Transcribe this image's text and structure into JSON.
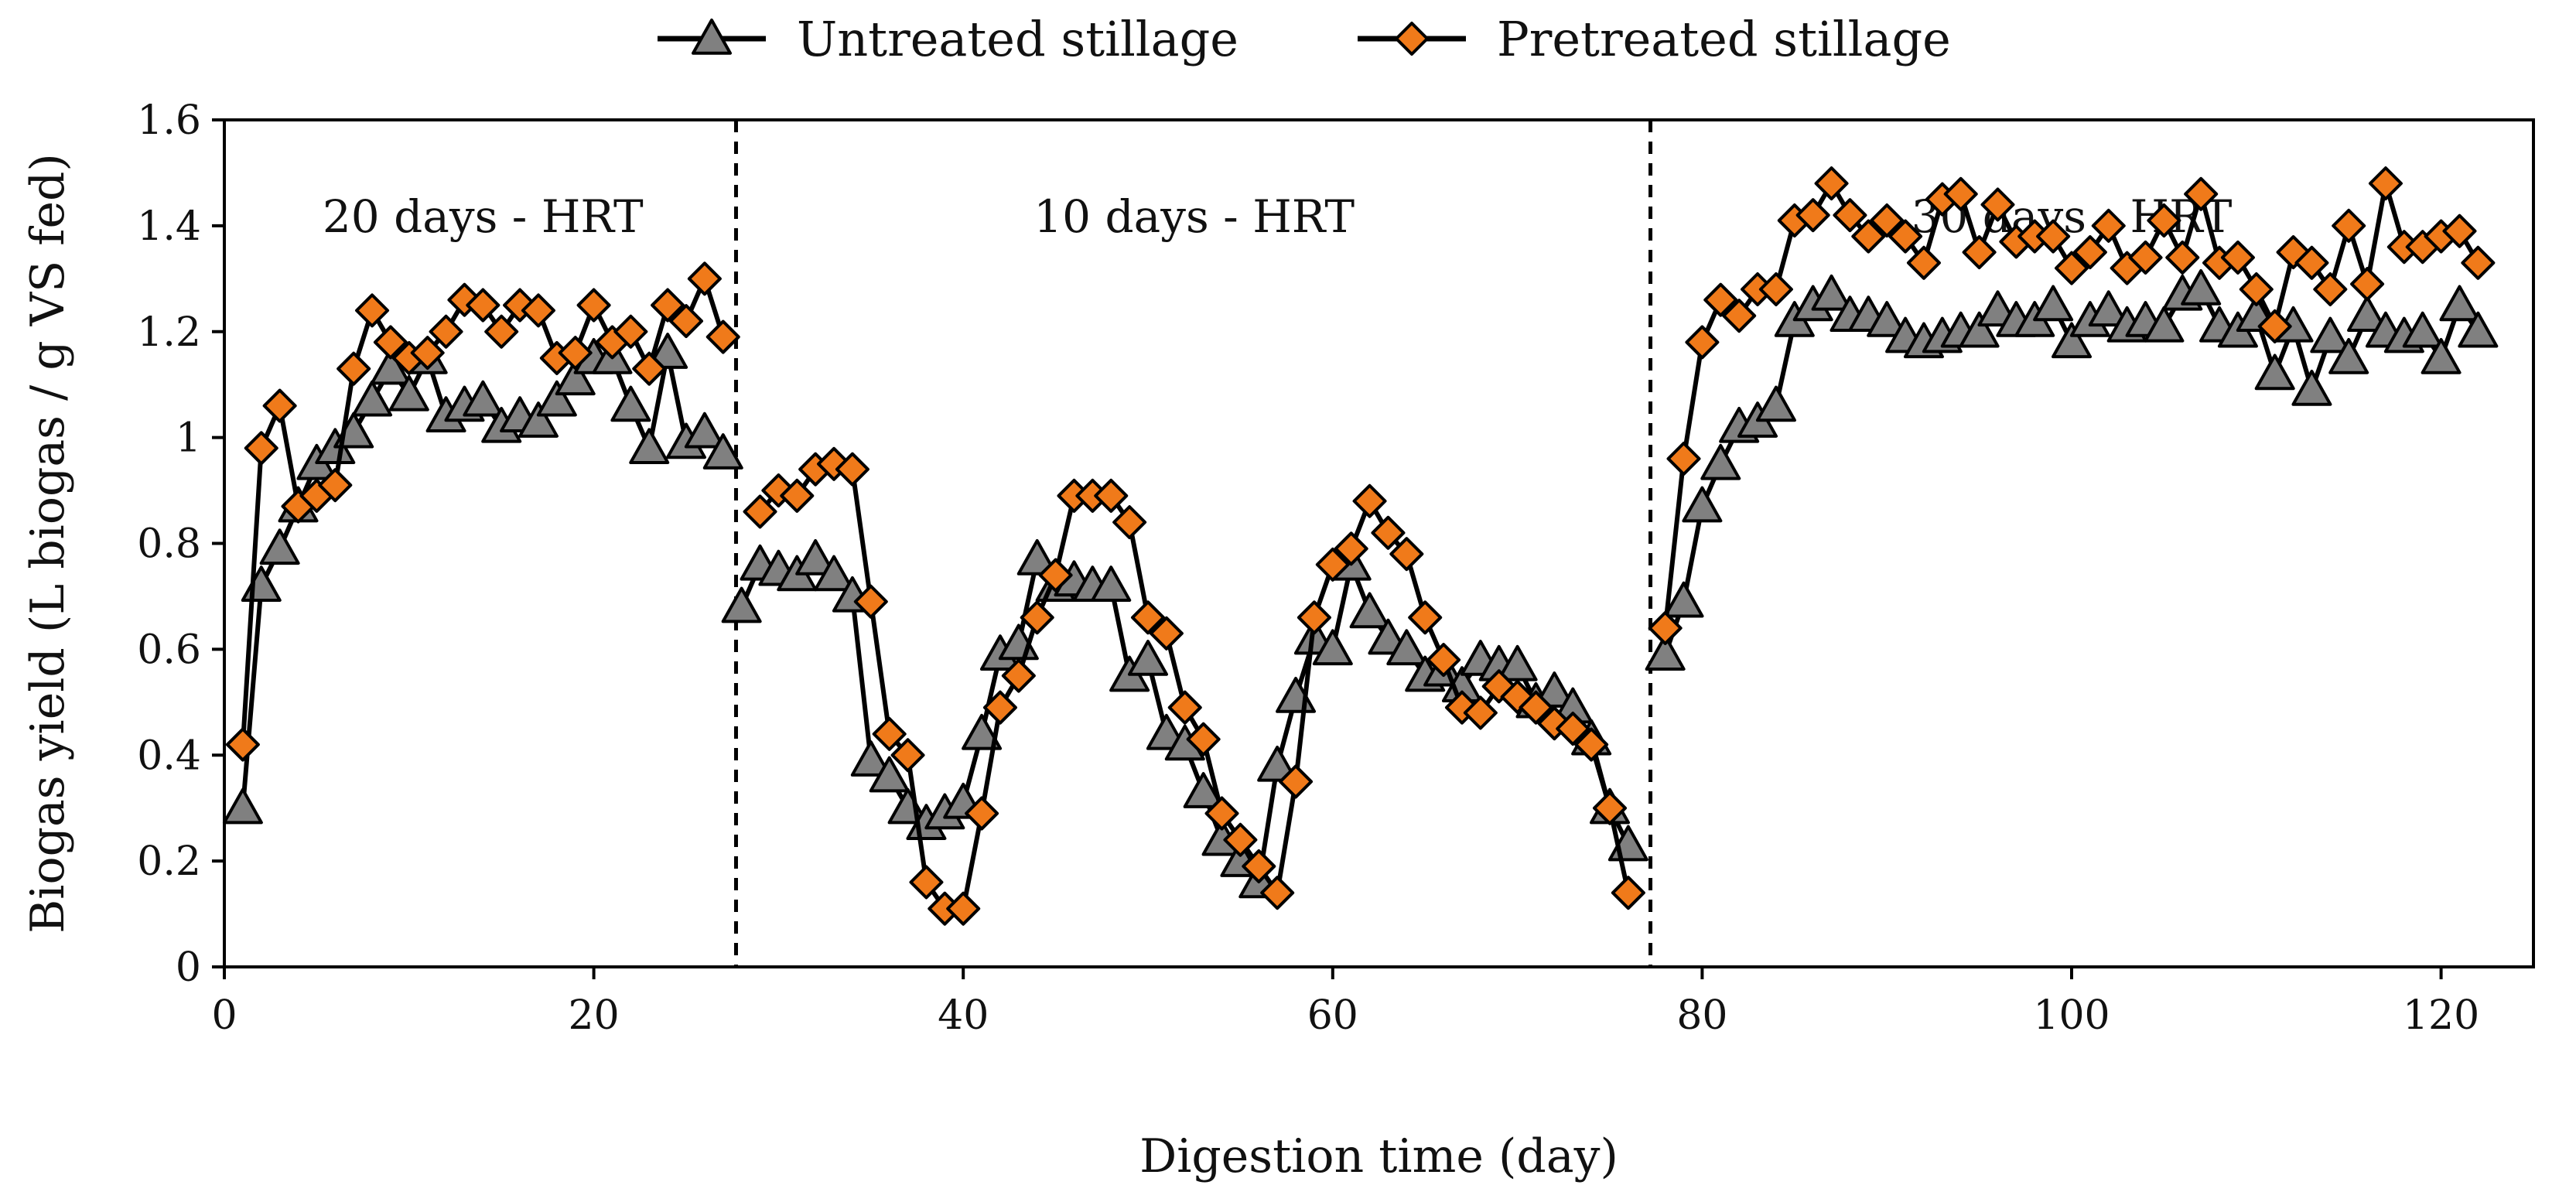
{
  "chart_data": {
    "type": "line",
    "xlabel": "Digestion time (day)",
    "ylabel": "Biogas yield (L biogas / g VS fed)",
    "xlim": [
      0,
      125
    ],
    "ylim": [
      0,
      1.6
    ],
    "xticks": [
      0,
      20,
      40,
      60,
      80,
      100,
      120
    ],
    "yticks": [
      0,
      0.2,
      0.4,
      0.6,
      0.8,
      1,
      1.2,
      1.4,
      1.6
    ],
    "xtick_labels": [
      "0",
      "20",
      "40",
      "60",
      "80",
      "100",
      "120"
    ],
    "ytick_labels": [
      "0",
      "0.2",
      "0.4",
      "0.6",
      "0.8",
      "1",
      "1.2",
      "1.4",
      "1.6"
    ],
    "grid": false,
    "legend_position": "top-center",
    "dividers": [
      27.7,
      77.2
    ],
    "regions": [
      {
        "label": "20 days - HRT",
        "x": 14
      },
      {
        "label": "10 days - HRT",
        "x": 52.5
      },
      {
        "label": "30 days - HRT",
        "x": 100
      }
    ],
    "series": [
      {
        "name": "Untreated stillage",
        "marker": "triangle",
        "color": "#808080",
        "segments": [
          {
            "x": [
              1,
              2,
              3,
              4,
              5,
              6,
              7,
              8,
              9,
              10,
              11,
              12,
              13,
              14,
              15,
              16,
              17,
              18,
              19,
              20,
              21,
              22,
              23,
              24,
              25,
              26,
              27
            ],
            "y": [
              0.3,
              0.72,
              0.79,
              0.87,
              0.95,
              0.98,
              1.01,
              1.07,
              1.13,
              1.08,
              1.15,
              1.04,
              1.06,
              1.07,
              1.02,
              1.04,
              1.03,
              1.07,
              1.11,
              1.15,
              1.15,
              1.06,
              0.98,
              1.16,
              0.99,
              1.01,
              0.97
            ]
          },
          {
            "x": [
              28,
              29,
              30,
              31,
              32,
              33,
              34,
              35,
              36,
              37,
              38,
              39,
              40,
              41,
              42,
              43,
              44,
              45,
              46,
              47,
              48,
              49,
              50,
              51,
              52,
              53,
              54,
              55,
              56,
              57,
              58,
              59,
              60,
              61,
              62,
              63,
              64,
              65,
              66,
              67,
              68,
              69,
              70,
              71,
              72,
              73,
              74,
              75,
              76
            ],
            "y": [
              0.68,
              0.76,
              0.75,
              0.74,
              0.77,
              0.74,
              0.7,
              0.39,
              0.36,
              0.3,
              0.27,
              0.29,
              0.31,
              0.44,
              0.59,
              0.61,
              0.77,
              0.72,
              0.73,
              0.72,
              0.72,
              0.55,
              0.58,
              0.44,
              0.42,
              0.33,
              0.24,
              0.2,
              0.16,
              0.38,
              0.51,
              0.62,
              0.6,
              0.76,
              0.67,
              0.62,
              0.6,
              0.55,
              0.56,
              0.53,
              0.58,
              0.57,
              0.57,
              0.5,
              0.52,
              0.49,
              0.43,
              0.3,
              0.23
            ]
          },
          {
            "x": [
              78,
              79,
              80,
              81,
              82,
              83,
              84,
              85,
              86,
              87,
              88,
              89,
              90,
              91,
              92,
              93,
              94,
              95,
              96,
              97,
              98,
              99,
              100,
              101,
              102,
              103,
              104,
              105,
              106,
              107,
              108,
              109,
              110,
              111,
              112,
              113,
              114,
              115,
              116,
              117,
              118,
              119,
              120,
              121,
              122
            ],
            "y": [
              0.59,
              0.69,
              0.87,
              0.95,
              1.02,
              1.03,
              1.06,
              1.22,
              1.25,
              1.27,
              1.23,
              1.23,
              1.22,
              1.19,
              1.18,
              1.19,
              1.2,
              1.2,
              1.24,
              1.22,
              1.22,
              1.25,
              1.18,
              1.22,
              1.24,
              1.21,
              1.22,
              1.21,
              1.27,
              1.28,
              1.21,
              1.2,
              1.23,
              1.12,
              1.21,
              1.09,
              1.19,
              1.15,
              1.23,
              1.2,
              1.19,
              1.2,
              1.15,
              1.25,
              1.2
            ]
          }
        ]
      },
      {
        "name": "Pretreated stillage",
        "marker": "diamond",
        "color": "#f07a1a",
        "segments": [
          {
            "x": [
              1,
              2,
              3,
              4,
              5,
              6,
              7,
              8,
              9,
              10,
              11,
              12,
              13,
              14,
              15,
              16,
              17,
              18,
              19,
              20,
              21,
              22,
              23,
              24,
              25,
              26,
              27
            ],
            "y": [
              0.42,
              0.98,
              1.06,
              0.87,
              0.89,
              0.91,
              1.13,
              1.24,
              1.18,
              1.15,
              1.16,
              1.2,
              1.26,
              1.25,
              1.2,
              1.25,
              1.24,
              1.15,
              1.16,
              1.25,
              1.18,
              1.2,
              1.13,
              1.25,
              1.22,
              1.3,
              1.19
            ]
          },
          {
            "x": [
              29,
              30,
              31,
              32,
              33,
              34,
              35,
              36,
              37,
              38,
              39,
              40,
              41,
              42,
              43,
              44,
              45,
              46,
              47,
              48,
              49,
              50,
              51,
              52,
              53,
              54,
              55,
              56,
              57,
              58,
              59,
              60,
              61,
              62,
              63,
              64,
              65,
              66,
              67,
              68,
              69,
              70,
              71,
              72,
              73,
              74,
              75,
              76
            ],
            "y": [
              0.86,
              0.9,
              0.89,
              0.94,
              0.95,
              0.94,
              0.69,
              0.44,
              0.4,
              0.16,
              0.11,
              0.11,
              0.29,
              0.49,
              0.55,
              0.66,
              0.74,
              0.89,
              0.89,
              0.89,
              0.84,
              0.66,
              0.63,
              0.49,
              0.43,
              0.29,
              0.24,
              0.19,
              0.14,
              0.35,
              0.66,
              0.76,
              0.79,
              0.88,
              0.82,
              0.78,
              0.66,
              0.58,
              0.49,
              0.48,
              0.53,
              0.51,
              0.49,
              0.46,
              0.45,
              0.42,
              0.3,
              0.14
            ]
          },
          {
            "x": [
              78,
              79,
              80,
              81,
              82,
              83,
              84,
              85,
              86,
              87,
              88,
              89,
              90,
              91,
              92,
              93,
              94,
              95,
              96,
              97,
              98,
              99,
              100,
              101,
              102,
              103,
              104,
              105,
              106,
              107,
              108,
              109,
              110,
              111,
              112,
              113,
              114,
              115,
              116,
              117,
              118,
              119,
              120,
              121,
              122
            ],
            "y": [
              0.64,
              0.96,
              1.18,
              1.26,
              1.23,
              1.28,
              1.28,
              1.41,
              1.42,
              1.48,
              1.42,
              1.38,
              1.41,
              1.38,
              1.33,
              1.45,
              1.46,
              1.35,
              1.44,
              1.37,
              1.38,
              1.38,
              1.32,
              1.35,
              1.4,
              1.32,
              1.34,
              1.41,
              1.34,
              1.46,
              1.33,
              1.34,
              1.28,
              1.21,
              1.35,
              1.33,
              1.28,
              1.4,
              1.29,
              1.48,
              1.36,
              1.36,
              1.38,
              1.39,
              1.33
            ]
          }
        ]
      }
    ]
  }
}
